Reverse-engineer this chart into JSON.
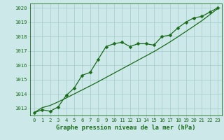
{
  "x": [
    0,
    1,
    2,
    3,
    4,
    5,
    6,
    7,
    8,
    9,
    10,
    11,
    12,
    13,
    14,
    15,
    16,
    17,
    18,
    19,
    20,
    21,
    22,
    23
  ],
  "y_main": [
    1012.7,
    1012.9,
    1012.8,
    1013.1,
    1013.9,
    1014.4,
    1015.3,
    1015.5,
    1016.4,
    1017.3,
    1017.5,
    1017.6,
    1017.3,
    1017.5,
    1017.5,
    1017.4,
    1018.0,
    1018.1,
    1018.6,
    1019.0,
    1019.3,
    1019.4,
    1019.7,
    1020.0
  ],
  "y_trend": [
    1012.7,
    1013.05,
    1013.2,
    1013.45,
    1013.72,
    1014.0,
    1014.28,
    1014.56,
    1014.85,
    1015.15,
    1015.45,
    1015.75,
    1016.05,
    1016.35,
    1016.65,
    1016.95,
    1017.28,
    1017.62,
    1017.98,
    1018.35,
    1018.72,
    1019.1,
    1019.52,
    1019.95
  ],
  "line_color": "#1a6b1a",
  "bg_color": "#cce8e8",
  "grid_color": "#aacece",
  "title": "Graphe pression niveau de la mer (hPa)",
  "xlim": [
    -0.5,
    23.5
  ],
  "ylim": [
    1012.5,
    1020.3
  ],
  "yticks": [
    1013,
    1014,
    1015,
    1016,
    1017,
    1018,
    1019,
    1020
  ],
  "xticks": [
    0,
    1,
    2,
    3,
    4,
    5,
    6,
    7,
    8,
    9,
    10,
    11,
    12,
    13,
    14,
    15,
    16,
    17,
    18,
    19,
    20,
    21,
    22,
    23
  ],
  "tick_fontsize": 5.2,
  "title_fontsize": 6.2,
  "marker_size": 2.5,
  "line_width": 0.9
}
